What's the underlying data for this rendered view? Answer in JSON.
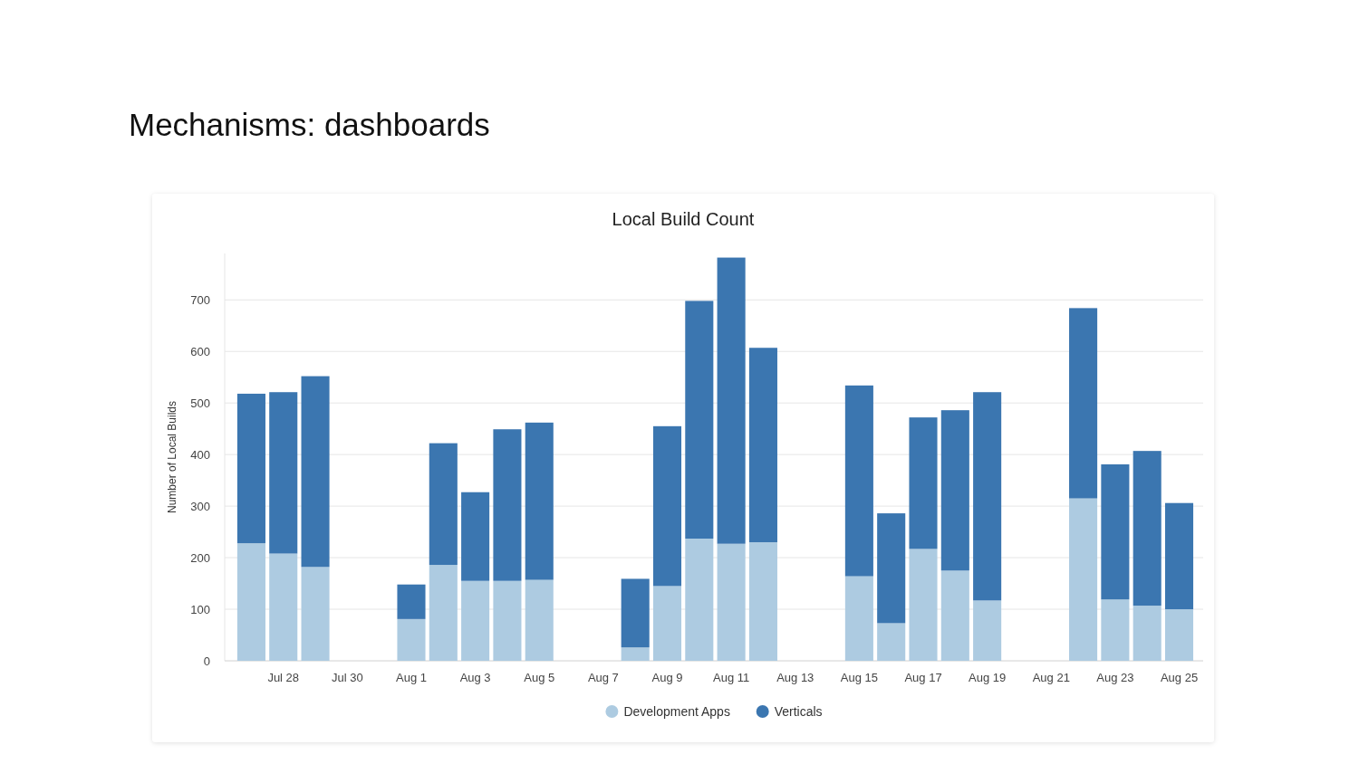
{
  "chart_data": {
    "type": "bar",
    "title": "Mechanisms: dashboards",
    "subtitle": "Local Build Count",
    "ylabel": "Number of Local Builds",
    "x": [
      "--07-27",
      "--07-28",
      "--07-29",
      "--08-01",
      "--08-02",
      "--08-03",
      "--08-04",
      "--08-05",
      "--08-08",
      "--08-09",
      "--08-10",
      "--08-11",
      "--08-12",
      "--08-15",
      "--08-16",
      "--08-17",
      "--08-18",
      "--08-19",
      "--08-22",
      "--08-23",
      "--08-24",
      "--08-25"
    ],
    "series": [
      {
        "name": "Development Apps",
        "color": "#adcbe1",
        "values": [
          228,
          208,
          182,
          81,
          186,
          155,
          155,
          157,
          26,
          145,
          237,
          227,
          230,
          164,
          73,
          217,
          175,
          117,
          315,
          119,
          107,
          100
        ]
      },
      {
        "name": "Verticals",
        "color": "#3b76b0",
        "values": [
          290,
          313,
          370,
          67,
          236,
          172,
          294,
          305,
          133,
          310,
          461,
          555,
          377,
          370,
          213,
          255,
          311,
          404,
          369,
          262,
          300,
          206
        ]
      }
    ],
    "stacked": true,
    "xlim": [
      "--07-26T04:00",
      "--08-25T18:00"
    ],
    "xticks": [
      {
        "value": "--07-28",
        "label": "Jul 28"
      },
      {
        "value": "--07-30",
        "label": "Jul 30"
      },
      {
        "value": "--08-01",
        "label": "Aug 1"
      },
      {
        "value": "--08-03",
        "label": "Aug 3"
      },
      {
        "value": "--08-05",
        "label": "Aug 5"
      },
      {
        "value": "--08-07",
        "label": "Aug 7"
      },
      {
        "value": "--08-09",
        "label": "Aug 9"
      },
      {
        "value": "--08-11",
        "label": "Aug 11"
      },
      {
        "value": "--08-13",
        "label": "Aug 13"
      },
      {
        "value": "--08-15",
        "label": "Aug 15"
      },
      {
        "value": "--08-17",
        "label": "Aug 17"
      },
      {
        "value": "--08-19",
        "label": "Aug 19"
      },
      {
        "value": "--08-21",
        "label": "Aug 21"
      },
      {
        "value": "--08-23",
        "label": "Aug 23"
      },
      {
        "value": "--08-25",
        "label": "Aug 25"
      }
    ],
    "ylim": [
      0,
      790
    ],
    "yticks": [
      0,
      100,
      200,
      300,
      400,
      500,
      600,
      700
    ],
    "grid": "y",
    "legend": "bottom"
  }
}
